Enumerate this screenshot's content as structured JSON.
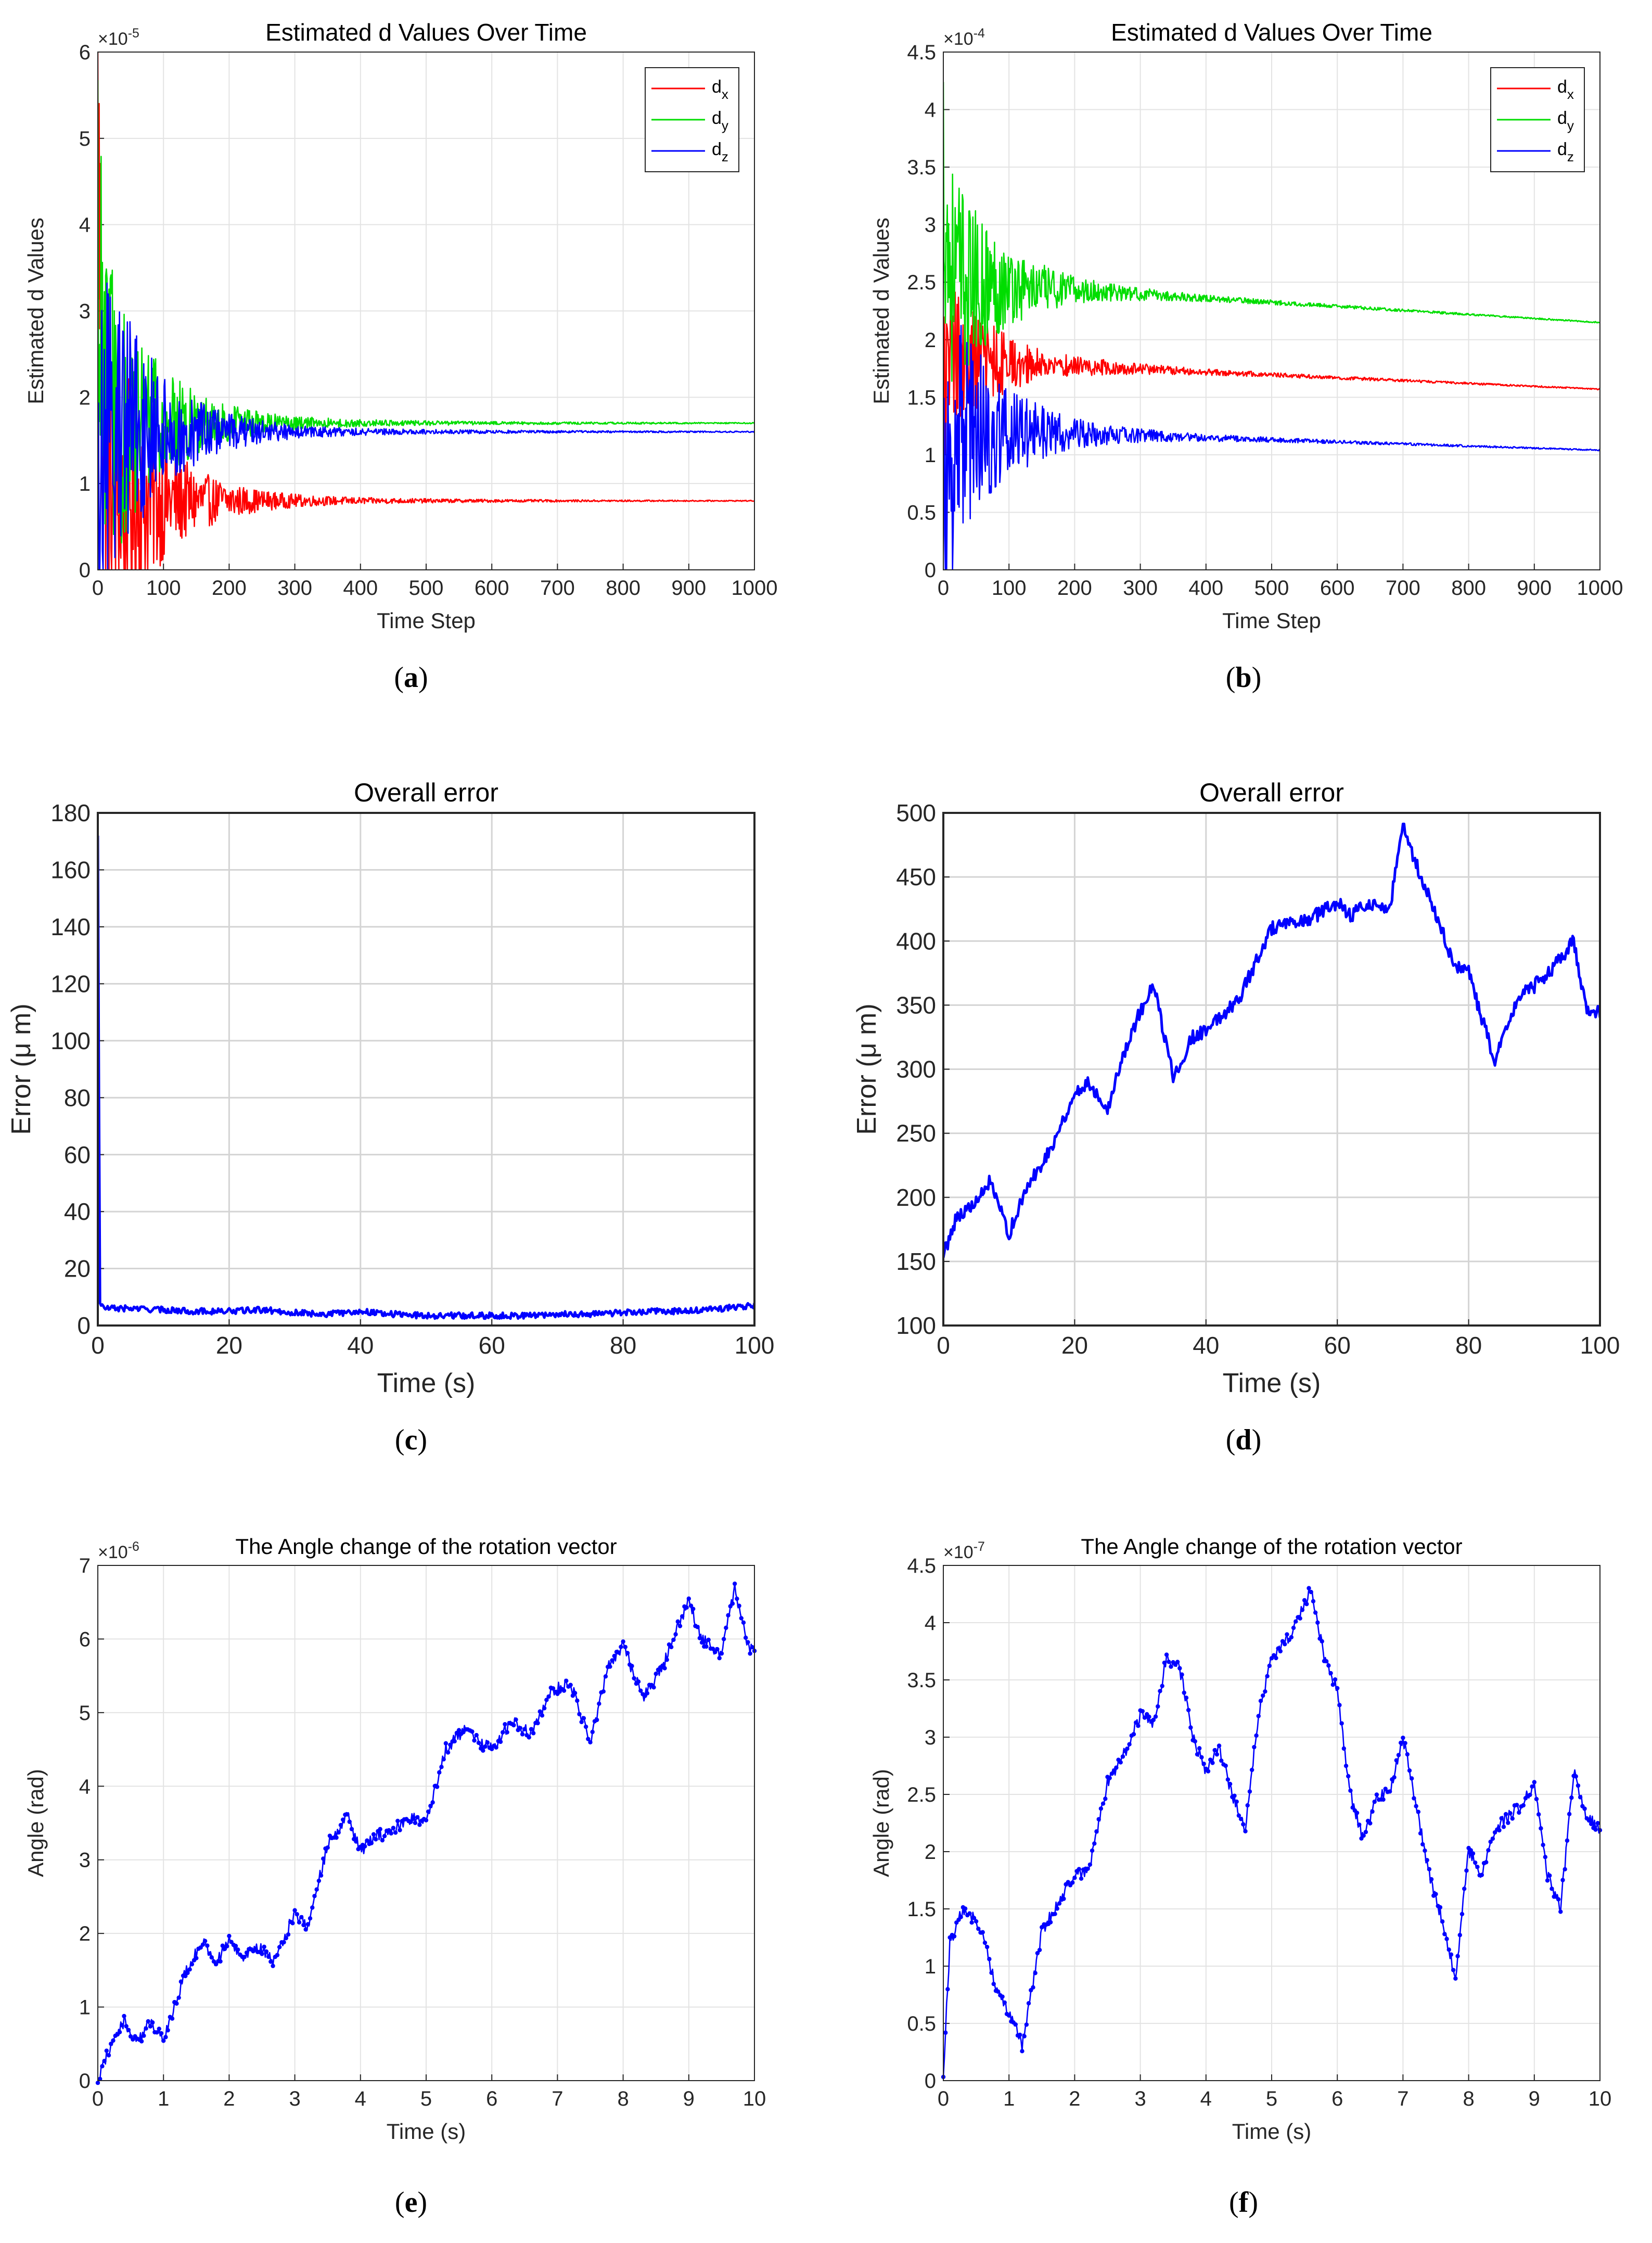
{
  "chart_data": [
    {
      "id": "a",
      "type": "line",
      "caption_letter": "a",
      "title": "Estimated d Values Over Time",
      "xlabel": "Time Step",
      "ylabel": "Estimated d Values",
      "xlim": [
        0,
        1000
      ],
      "ylim": [
        0,
        6
      ],
      "exponent": "-5",
      "x_ticks": [
        "0",
        "100",
        "200",
        "300",
        "400",
        "500",
        "600",
        "700",
        "800",
        "900",
        "1000"
      ],
      "y_ticks": [
        "0",
        "1",
        "2",
        "3",
        "4",
        "5",
        "6"
      ],
      "legend": [
        "d_x",
        "d_y",
        "d_z"
      ],
      "series": [
        {
          "name": "d_x",
          "color": "#ff0000",
          "start": 5.4,
          "final": 0.8,
          "amp": 2.6,
          "settle": 300,
          "slope": 0
        },
        {
          "name": "d_y",
          "color": "#00dd00",
          "start": 4.6,
          "final": 1.7,
          "amp": 2.2,
          "settle": 320,
          "slope": 0
        },
        {
          "name": "d_z",
          "color": "#0000ff",
          "start": 0.2,
          "final": 1.6,
          "amp": 2.3,
          "settle": 320,
          "slope": 0
        }
      ]
    },
    {
      "id": "b",
      "type": "line",
      "caption_letter": "b",
      "title": "Estimated d Values Over Time",
      "xlabel": "Time Step",
      "ylabel": "Estimated d Values",
      "xlim": [
        0,
        1000
      ],
      "ylim": [
        0,
        4.5
      ],
      "exponent": "-4",
      "x_ticks": [
        "0",
        "100",
        "200",
        "300",
        "400",
        "500",
        "600",
        "700",
        "800",
        "900",
        "1000"
      ],
      "y_ticks": [
        "0",
        "0.5",
        "1",
        "1.5",
        "2",
        "2.5",
        "3",
        "3.5",
        "4",
        "4.5"
      ],
      "legend": [
        "d_x",
        "d_y",
        "d_z"
      ],
      "series": [
        {
          "name": "d_x",
          "color": "#ff0000",
          "start": 1.5,
          "final": 1.82,
          "amp": 0.7,
          "settle": 330,
          "slope": -0.00025
        },
        {
          "name": "d_y",
          "color": "#00dd00",
          "start": 3.6,
          "final": 2.5,
          "amp": 1.1,
          "settle": 330,
          "slope": -0.00035
        },
        {
          "name": "d_z",
          "color": "#0000ff",
          "start": 0.0,
          "final": 1.22,
          "amp": 1.3,
          "settle": 330,
          "slope": -0.00018
        }
      ]
    },
    {
      "id": "c",
      "type": "line",
      "caption_letter": "c",
      "title": "Overall error",
      "xlabel": "Time (s)",
      "ylabel": "Error (μ m)",
      "xlim": [
        0,
        100
      ],
      "ylim": [
        0,
        180
      ],
      "x_ticks": [
        "0",
        "20",
        "40",
        "60",
        "80",
        "100"
      ],
      "y_ticks": [
        "0",
        "20",
        "40",
        "60",
        "80",
        "100",
        "120",
        "140",
        "160",
        "180"
      ],
      "series": [
        {
          "name": "error",
          "color": "#0000ff",
          "x": [
            0,
            0.3,
            1,
            5,
            10,
            15,
            20,
            25,
            30,
            35,
            40,
            45,
            50,
            55,
            60,
            65,
            70,
            75,
            80,
            85,
            90,
            95,
            100
          ],
          "y": [
            172,
            8,
            6,
            6,
            5.5,
            5,
            5,
            5.5,
            4.5,
            4,
            5,
            4,
            3.5,
            3.5,
            3.5,
            3.5,
            4,
            4,
            4.5,
            5,
            5,
            6,
            7
          ]
        }
      ]
    },
    {
      "id": "d",
      "type": "line",
      "caption_letter": "d",
      "title": "Overall error",
      "xlabel": "Time (s)",
      "ylabel": "Error (μ m)",
      "xlim": [
        0,
        100
      ],
      "ylim": [
        100,
        500
      ],
      "x_ticks": [
        "0",
        "20",
        "40",
        "60",
        "80",
        "100"
      ],
      "y_ticks": [
        "100",
        "150",
        "200",
        "250",
        "300",
        "350",
        "400",
        "450",
        "500"
      ],
      "series": [
        {
          "name": "error",
          "color": "#0000ff",
          "x": [
            0,
            2,
            5,
            7,
            10,
            13,
            16,
            20,
            22,
            25,
            28,
            30,
            32,
            35,
            38,
            40,
            45,
            50,
            55,
            60,
            62,
            65,
            68,
            70,
            72,
            75,
            78,
            80,
            82,
            84,
            86,
            88,
            90,
            93,
            96,
            98,
            100
          ],
          "y": [
            155,
            185,
            195,
            212,
            172,
            210,
            235,
            280,
            290,
            270,
            320,
            345,
            365,
            295,
            325,
            330,
            355,
            410,
            415,
            430,
            420,
            430,
            425,
            490,
            460,
            420,
            380,
            375,
            340,
            305,
            335,
            360,
            365,
            380,
            400,
            345,
            345
          ]
        }
      ]
    },
    {
      "id": "e",
      "type": "line",
      "caption_letter": "e",
      "title": "The Angle change of the rotation vector",
      "xlabel": "Time (s)",
      "ylabel": "Angle (rad)",
      "xlim": [
        0,
        10
      ],
      "ylim": [
        0,
        7
      ],
      "exponent": "-6",
      "x_ticks": [
        "0",
        "1",
        "2",
        "3",
        "4",
        "5",
        "6",
        "7",
        "8",
        "9",
        "10"
      ],
      "y_ticks": [
        "0",
        "1",
        "2",
        "3",
        "4",
        "5",
        "6",
        "7"
      ],
      "series": [
        {
          "name": "angle",
          "color": "#0000ff",
          "x": [
            0,
            0.2,
            0.4,
            0.6,
            0.8,
            1.0,
            1.1,
            1.3,
            1.6,
            1.8,
            2.0,
            2.2,
            2.5,
            2.7,
            3.0,
            3.2,
            3.5,
            3.8,
            4.0,
            4.2,
            4.5,
            4.8,
            5.0,
            5.3,
            5.6,
            5.8,
            6.0,
            6.3,
            6.6,
            6.9,
            7.2,
            7.5,
            7.8,
            8.0,
            8.3,
            8.6,
            8.8,
            9.0,
            9.2,
            9.5,
            9.7,
            9.9,
            10.0
          ],
          "y": [
            0,
            0.5,
            0.8,
            0.5,
            0.8,
            0.6,
            0.8,
            1.4,
            1.9,
            1.6,
            1.9,
            1.7,
            1.8,
            1.6,
            2.3,
            2.1,
            3.2,
            3.6,
            3.1,
            3.3,
            3.4,
            3.6,
            3.5,
            4.5,
            4.8,
            4.6,
            4.5,
            4.9,
            4.7,
            5.3,
            5.4,
            4.6,
            5.7,
            5.9,
            5.2,
            5.6,
            6.1,
            6.5,
            6.0,
            5.8,
            6.7,
            5.9,
            5.8
          ]
        }
      ]
    },
    {
      "id": "f",
      "type": "line",
      "caption_letter": "f",
      "title": "The Angle change of the rotation vector",
      "xlabel": "Time (s)",
      "ylabel": "Angle (rad)",
      "xlim": [
        0,
        10
      ],
      "ylim": [
        0,
        4.5
      ],
      "exponent": "-7",
      "x_ticks": [
        "0",
        "1",
        "2",
        "3",
        "4",
        "5",
        "6",
        "7",
        "8",
        "9",
        "10"
      ],
      "y_ticks": [
        "0",
        "0.5",
        "1",
        "1.5",
        "2",
        "2.5",
        "3",
        "3.5",
        "4",
        "4.5"
      ],
      "series": [
        {
          "name": "angle",
          "color": "#0000ff",
          "x": [
            0,
            0.1,
            0.3,
            0.5,
            0.6,
            0.8,
            1.0,
            1.1,
            1.2,
            1.5,
            1.8,
            2.0,
            2.2,
            2.5,
            2.8,
            3.0,
            3.2,
            3.4,
            3.6,
            3.8,
            4.0,
            4.2,
            4.4,
            4.6,
            4.8,
            5.0,
            5.3,
            5.6,
            5.8,
            6.0,
            6.2,
            6.4,
            6.6,
            6.8,
            7.0,
            7.2,
            7.4,
            7.6,
            7.8,
            8.0,
            8.2,
            8.4,
            8.6,
            8.8,
            9.0,
            9.2,
            9.4,
            9.6,
            9.8,
            10.0
          ],
          "y": [
            0.05,
            1.2,
            1.5,
            1.4,
            1.3,
            0.8,
            0.6,
            0.5,
            0.3,
            1.3,
            1.6,
            1.8,
            1.8,
            2.6,
            2.9,
            3.2,
            3.1,
            3.7,
            3.6,
            3.0,
            2.7,
            2.9,
            2.5,
            2.2,
            3.2,
            3.7,
            3.9,
            4.3,
            3.7,
            3.4,
            2.5,
            2.1,
            2.5,
            2.5,
            3.0,
            2.4,
            1.8,
            1.4,
            0.9,
            2.0,
            1.8,
            2.2,
            2.3,
            2.4,
            2.6,
            1.8,
            1.5,
            2.7,
            2.3,
            2.2
          ]
        }
      ]
    }
  ]
}
